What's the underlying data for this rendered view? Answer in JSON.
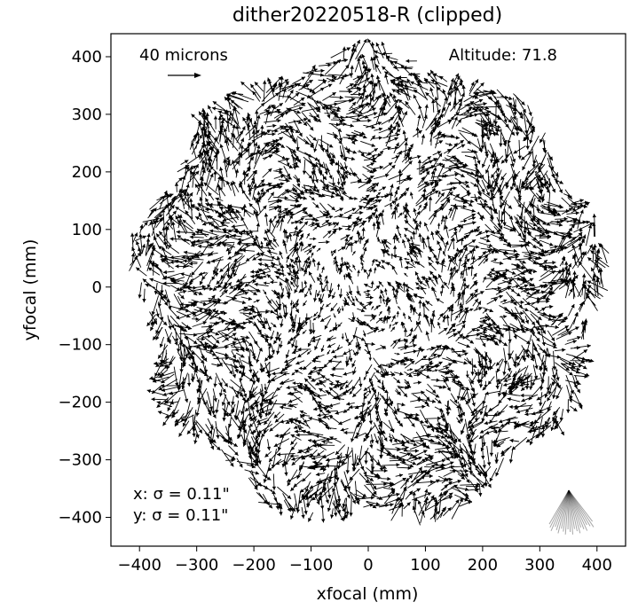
{
  "chart_data": {
    "type": "quiver",
    "title": "dither20220518-R (clipped)",
    "xlabel": "xfocal (mm)",
    "ylabel": "yfocal (mm)",
    "xlim": [
      -450,
      450
    ],
    "ylim": [
      -450,
      440
    ],
    "xticks": [
      -400,
      -300,
      -200,
      -100,
      0,
      100,
      200,
      300,
      400
    ],
    "yticks": [
      -400,
      -300,
      -200,
      -100,
      0,
      100,
      200,
      300,
      400
    ],
    "xtick_labels": [
      "−400",
      "−300",
      "−200",
      "−100",
      "0",
      "100",
      "200",
      "300",
      "400"
    ],
    "ytick_labels": [
      "−400",
      "−300",
      "−200",
      "−100",
      "0",
      "100",
      "200",
      "300",
      "400"
    ],
    "grid": false,
    "field_radius_mm": 420,
    "arrow_color": "#000000",
    "annotations": {
      "scale_label": "40 microns",
      "scale_arrow_microns": 40,
      "altitude": "Altitude:  71.8",
      "sigma_x": "x: σ = 0.11\"",
      "sigma_y": "y: σ = 0.11\""
    }
  }
}
